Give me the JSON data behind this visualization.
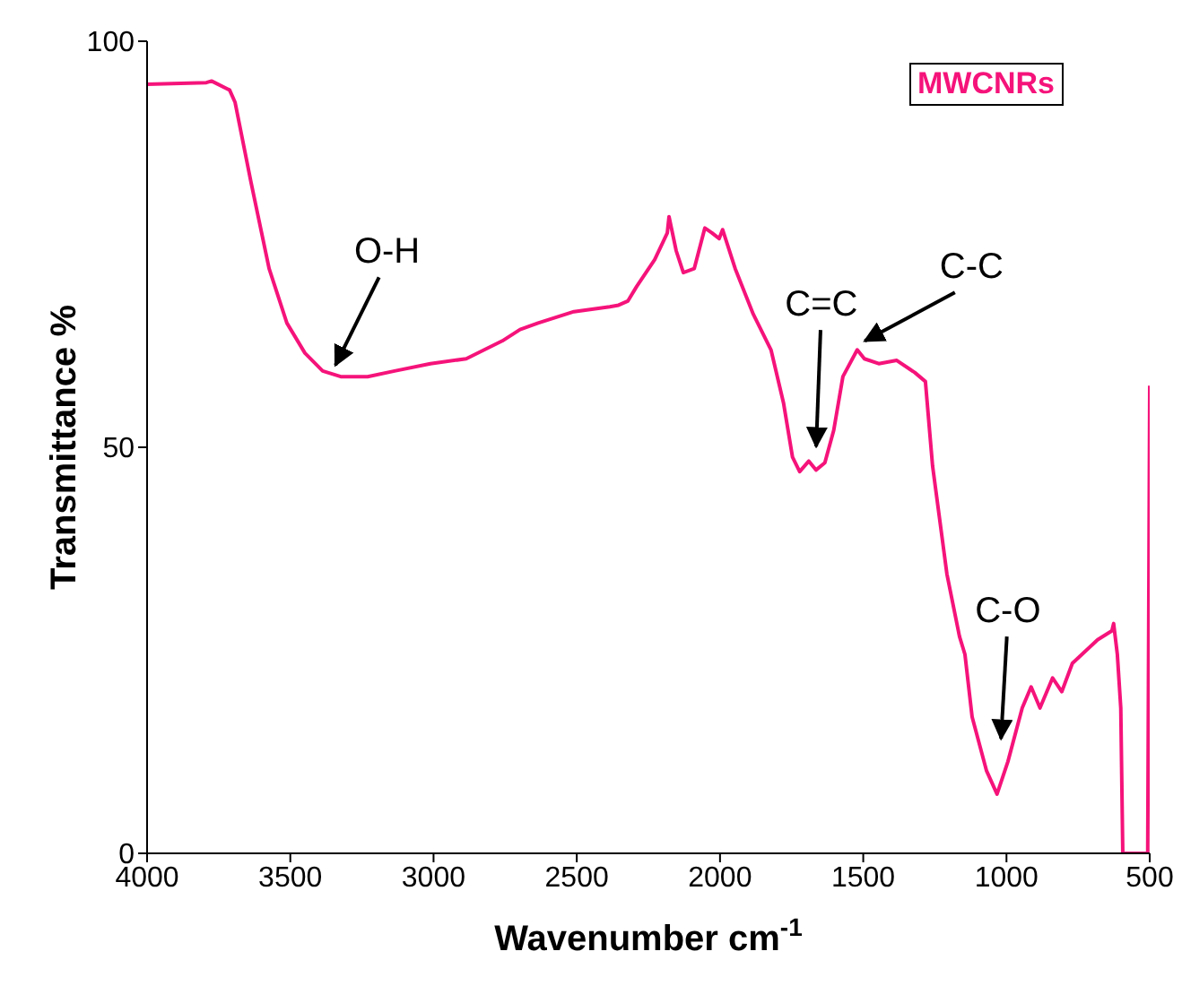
{
  "chart_data": {
    "type": "line",
    "xlabel": "Wavenumber cm$^{-1}$",
    "ylabel": "Transmittance %",
    "xlim": [
      4000,
      500
    ],
    "xticks": [
      4000,
      3500,
      3000,
      2500,
      2000,
      1500,
      1000,
      500
    ],
    "ylim": [
      0,
      100
    ],
    "yticks": [
      0,
      50,
      100
    ],
    "grid": false,
    "legend": "top right",
    "marker": "none",
    "line_style": "solid",
    "series": [
      {
        "name": "MWCNRs",
        "color": "#f5137a",
        "x": [
          4000,
          3793,
          3775,
          3712,
          3693,
          3637,
          3574,
          3512,
          3449,
          3387,
          3324,
          3230,
          3136,
          3011,
          2886,
          2760,
          2698,
          2635,
          2510,
          2385,
          2354,
          2322,
          2291,
          2228,
          2184,
          2178,
          2153,
          2128,
          2090,
          2053,
          2028,
          2003,
          1991,
          1947,
          1884,
          1822,
          1778,
          1747,
          1722,
          1690,
          1665,
          1634,
          1603,
          1571,
          1521,
          1496,
          1446,
          1383,
          1320,
          1283,
          1258,
          1208,
          1164,
          1145,
          1120,
          1070,
          1033,
          995,
          945,
          914,
          883,
          839,
          807,
          770,
          682,
          632,
          626,
          613,
          601,
          594,
          507,
          500
        ],
        "values": [
          94.7,
          94.9,
          95.1,
          94,
          92.5,
          82.6,
          72,
          65.3,
          61.6,
          59.4,
          58.7,
          58.7,
          59.4,
          60.3,
          60.9,
          63.1,
          64.5,
          65.3,
          66.7,
          67.3,
          67.5,
          68,
          69.8,
          73.1,
          76.4,
          78.4,
          74.2,
          71.5,
          72,
          77,
          76.4,
          75.7,
          76.8,
          72,
          66.4,
          62,
          55.4,
          48.8,
          47,
          48.3,
          47.2,
          48.1,
          52.1,
          58.7,
          62,
          60.9,
          60.3,
          60.7,
          59.2,
          58.1,
          47.7,
          34.4,
          26.7,
          24.5,
          16.8,
          10.2,
          7.3,
          11.3,
          17.9,
          20.5,
          17.9,
          21.6,
          19.9,
          23.4,
          26.3,
          27.4,
          28.3,
          24.5,
          17.9,
          0,
          0,
          57.6
        ]
      }
    ],
    "annotations": [
      {
        "text": "O-H",
        "x": 3350,
        "y": 59
      },
      {
        "text": "C=C",
        "x": 1665,
        "y": 49
      },
      {
        "text": "C-C",
        "x": 1510,
        "y": 62
      },
      {
        "text": "C-O",
        "x": 1020,
        "y": 13
      }
    ]
  }
}
